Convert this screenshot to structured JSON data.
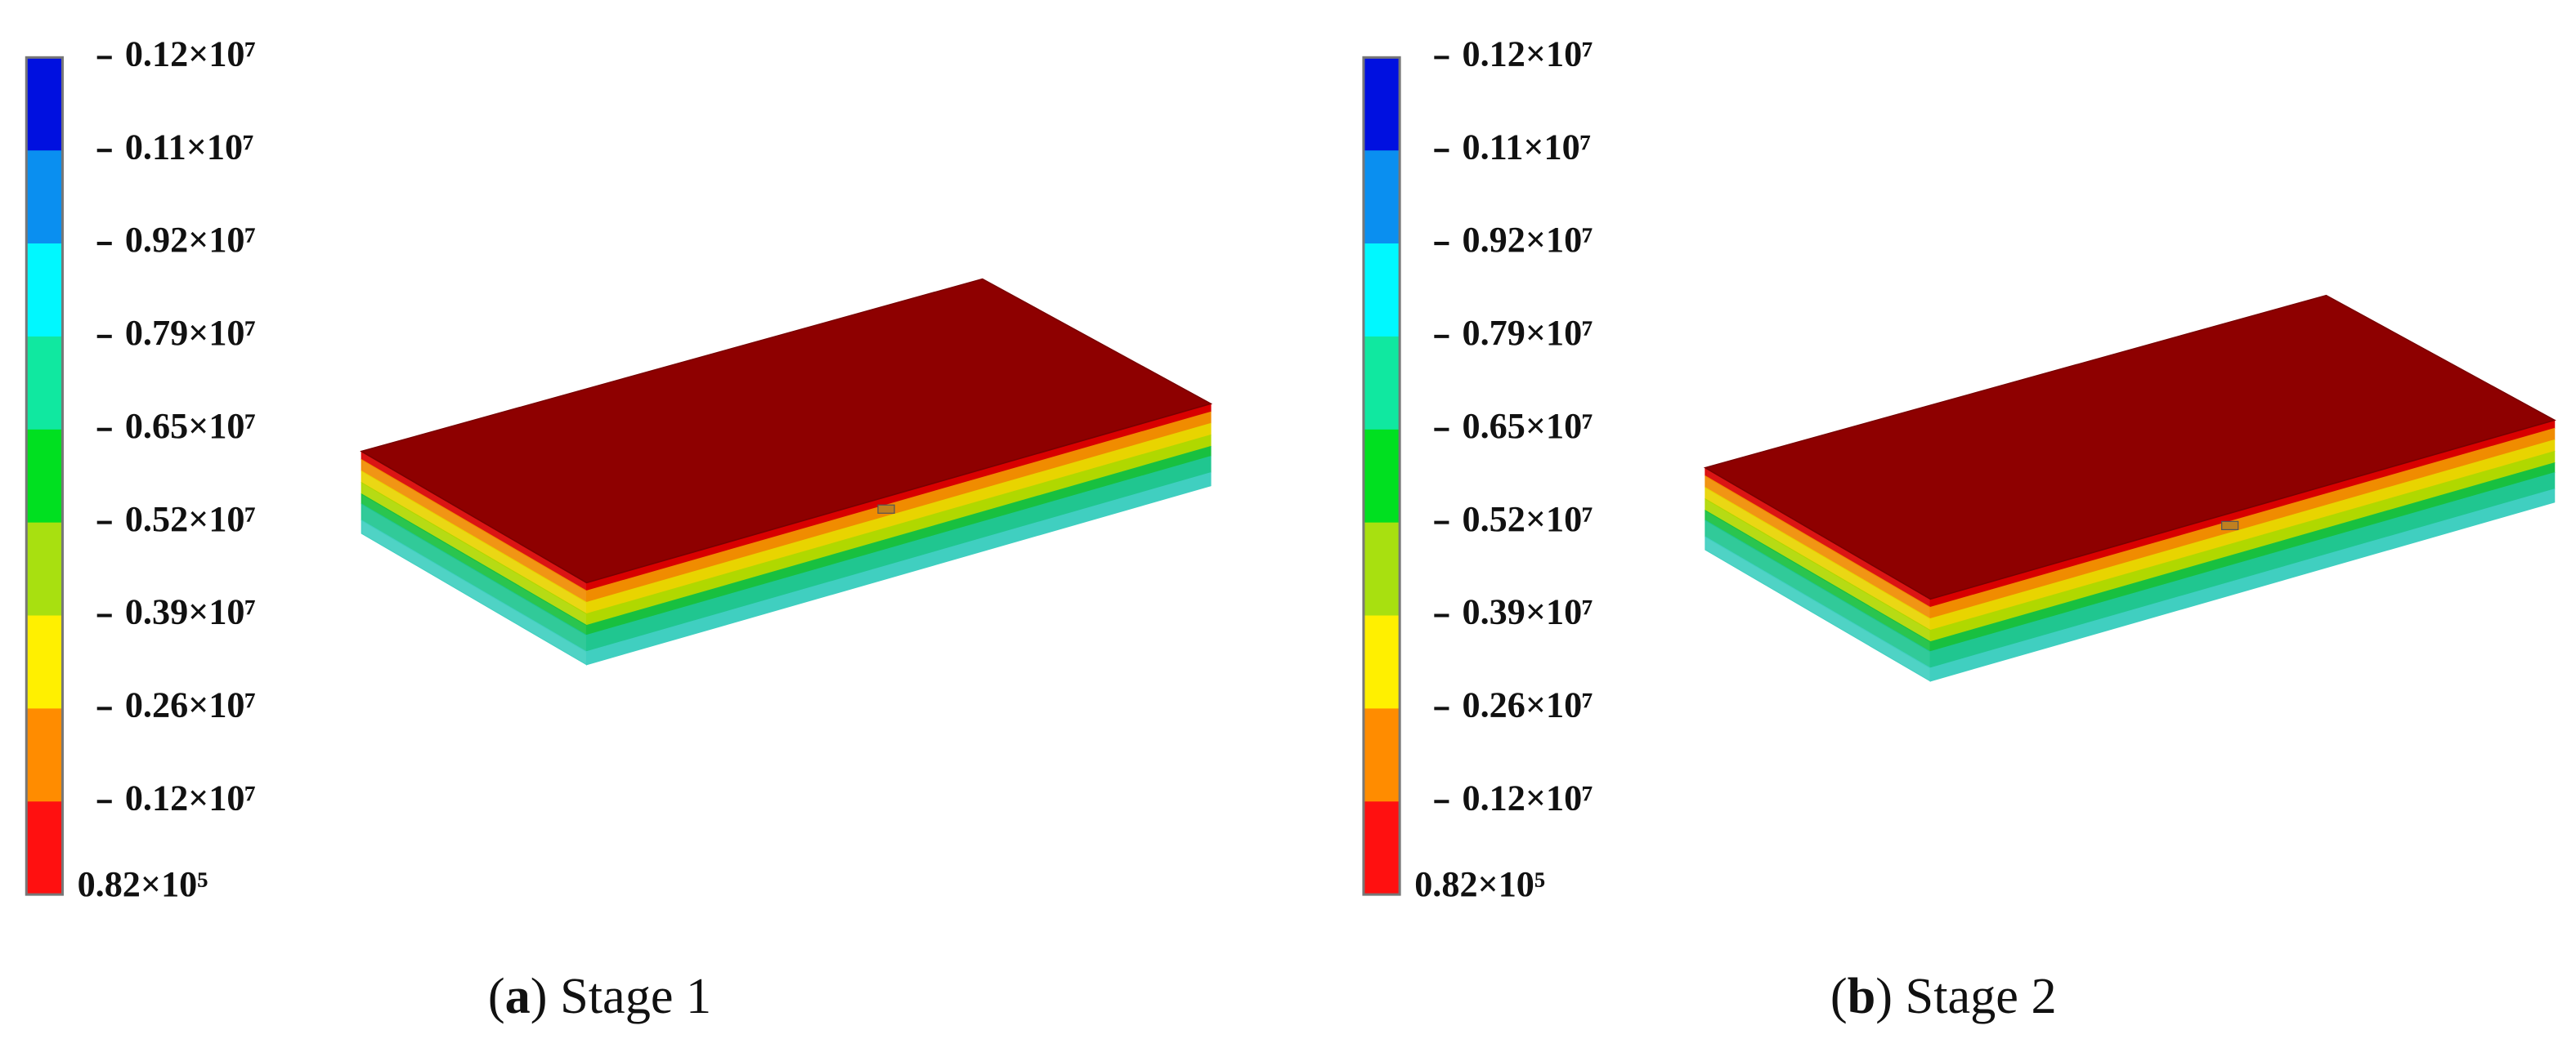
{
  "panels": [
    {
      "legend": {
        "labels": [
          "0.12×10⁷",
          "0.11×10⁷",
          "0.92×10⁷",
          "0.79×10⁷",
          "0.65×10⁷",
          "0.52×10⁷",
          "0.39×10⁷",
          "0.26×10⁷",
          "0.12×10⁷",
          "0.82×10⁵"
        ],
        "colors": [
          "#0010e0",
          "#0a8ff0",
          "#00f8ff",
          "#10e8a0",
          "#00e020",
          "#a8e010",
          "#fff000",
          "#ff8c00",
          "#ff1010"
        ]
      },
      "caption": {
        "prefix": "(",
        "label": "a",
        "text": ") Stage 1"
      }
    },
    {
      "legend": {
        "labels": [
          "0.12×10⁷",
          "0.11×10⁷",
          "0.92×10⁷",
          "0.79×10⁷",
          "0.65×10⁷",
          "0.52×10⁷",
          "0.39×10⁷",
          "0.26×10⁷",
          "0.12×10⁷",
          "0.82×10⁵"
        ],
        "colors": [
          "#0010e0",
          "#0a8ff0",
          "#00f8ff",
          "#10e8a0",
          "#00e020",
          "#a8e010",
          "#fff000",
          "#ff8c00",
          "#ff1010"
        ]
      },
      "caption": {
        "prefix": "(",
        "label": "b",
        "text": ") Stage 2"
      }
    }
  ]
}
